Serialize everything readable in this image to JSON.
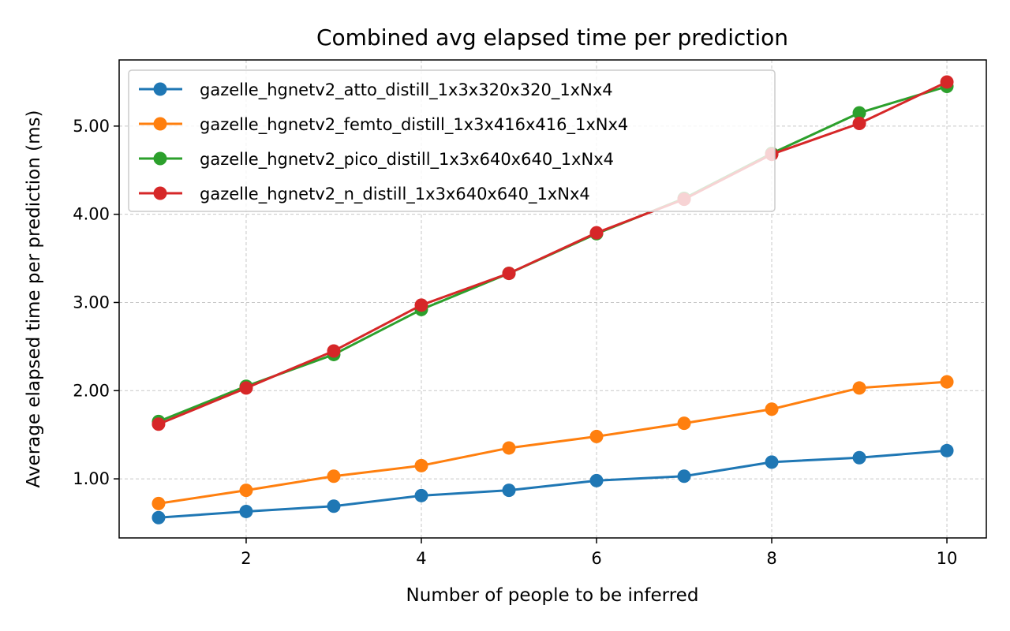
{
  "chart_data": {
    "type": "line",
    "title": "Combined avg elapsed time per prediction",
    "xlabel": "Number of people to be inferred",
    "ylabel": "Average elapsed time per prediction (ms)",
    "x": [
      1,
      2,
      3,
      4,
      5,
      6,
      7,
      8,
      9,
      10
    ],
    "xlim": [
      0.55,
      10.45
    ],
    "ylim": [
      0.33,
      5.75
    ],
    "xticks": [
      2,
      4,
      6,
      8,
      10
    ],
    "xtick_labels": [
      "2",
      "4",
      "6",
      "8",
      "10"
    ],
    "yticks": [
      1.0,
      2.0,
      3.0,
      4.0,
      5.0
    ],
    "ytick_labels": [
      "1.00",
      "2.00",
      "3.00",
      "4.00",
      "5.00"
    ],
    "grid": true,
    "legend_position": "top-left",
    "series": [
      {
        "name": "gazelle_hgnetv2_atto_distill_1x3x320x320_1xNx4",
        "color": "#1f77b4",
        "values": [
          0.56,
          0.63,
          0.69,
          0.81,
          0.87,
          0.98,
          1.03,
          1.19,
          1.24,
          1.32
        ]
      },
      {
        "name": "gazelle_hgnetv2_femto_distill_1x3x416x416_1xNx4",
        "color": "#ff7f0e",
        "values": [
          0.72,
          0.87,
          1.03,
          1.15,
          1.35,
          1.48,
          1.63,
          1.79,
          2.03,
          2.1
        ]
      },
      {
        "name": "gazelle_hgnetv2_pico_distill_1x3x640x640_1xNx4",
        "color": "#2ca02c",
        "values": [
          1.65,
          2.05,
          2.41,
          2.92,
          3.33,
          3.78,
          4.18,
          4.69,
          5.15,
          5.45
        ]
      },
      {
        "name": "gazelle_hgnetv2_n_distill_1x3x640x640_1xNx4",
        "color": "#d62728",
        "values": [
          1.62,
          2.03,
          2.45,
          2.97,
          3.33,
          3.79,
          4.17,
          4.68,
          5.03,
          5.5
        ]
      }
    ]
  }
}
